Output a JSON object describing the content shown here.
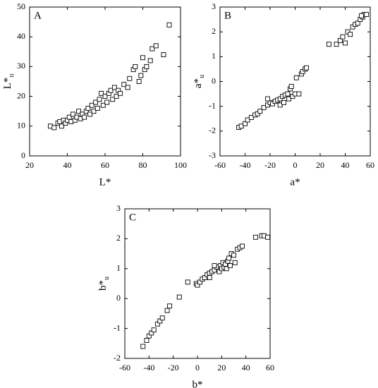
{
  "chart_data": [
    {
      "type": "scatter",
      "panel_label": "A",
      "xlabel": "L*",
      "ylabel": "L*",
      "ylabel_subscript": "u",
      "color": "#000000",
      "xlim": [
        20,
        100
      ],
      "xticks": [
        20,
        40,
        60,
        80,
        100
      ],
      "ylim": [
        0,
        50
      ],
      "yticks": [
        0,
        10,
        20,
        30,
        40,
        50
      ],
      "x": [
        31,
        33,
        35,
        36,
        37,
        38,
        39,
        40,
        41,
        42,
        43,
        44,
        45,
        46,
        47,
        48,
        49,
        50,
        51,
        52,
        53,
        54,
        55,
        56,
        57,
        58,
        59,
        60,
        61,
        62,
        63,
        64,
        65,
        66,
        67,
        68,
        70,
        72,
        73,
        75,
        76,
        78,
        79,
        80,
        81,
        82,
        84,
        85,
        87,
        91,
        94
      ],
      "y": [
        10,
        9.5,
        11,
        11.5,
        10,
        12,
        11,
        12,
        13,
        11.5,
        14,
        12,
        13,
        15,
        12.5,
        14,
        13,
        15,
        16,
        14,
        17,
        15,
        18,
        16,
        19,
        21,
        17,
        20,
        18,
        21,
        22,
        19,
        23,
        20,
        22,
        21,
        24,
        23,
        26,
        29,
        30,
        25,
        27,
        33,
        29,
        30,
        32,
        36,
        37,
        34,
        44
      ]
    },
    {
      "type": "scatter",
      "panel_label": "B",
      "xlabel": "a*",
      "ylabel": "a*",
      "ylabel_subscript": "u",
      "color": "#000000",
      "xlim": [
        -60,
        60
      ],
      "xticks": [
        -60,
        -40,
        -20,
        0,
        20,
        40,
        60
      ],
      "ylim": [
        -3,
        3
      ],
      "yticks": [
        -3,
        -2,
        -1,
        0,
        1,
        2,
        3
      ],
      "x": [
        -45,
        -43,
        -40,
        -38,
        -35,
        -32,
        -30,
        -28,
        -25,
        -22,
        -20,
        -18,
        -16,
        -14,
        -12,
        -10,
        -8,
        -6,
        -5,
        -4,
        -2,
        0,
        1,
        3,
        5,
        6,
        8,
        9,
        -22,
        -12,
        -9,
        -3,
        27,
        33,
        36,
        38,
        40,
        42,
        44,
        46,
        48,
        50,
        52,
        54,
        55,
        53,
        57
      ],
      "y": [
        -1.85,
        -1.8,
        -1.7,
        -1.55,
        -1.45,
        -1.35,
        -1.3,
        -1.2,
        -1.05,
        -0.95,
        -0.85,
        -0.9,
        -0.8,
        -0.75,
        -0.7,
        -0.6,
        -0.55,
        -0.5,
        -0.7,
        -0.3,
        -0.6,
        -0.5,
        0.15,
        -0.5,
        0.3,
        0.4,
        0.5,
        0.55,
        -0.7,
        -0.95,
        -0.85,
        -0.2,
        1.5,
        1.5,
        1.65,
        1.8,
        1.55,
        2.0,
        1.9,
        2.2,
        2.3,
        2.35,
        2.5,
        2.6,
        2.7,
        2.65,
        2.7
      ]
    },
    {
      "type": "scatter",
      "panel_label": "C",
      "xlabel": "b*",
      "ylabel": "b*",
      "ylabel_subscript": "u",
      "color": "#000000",
      "xlim": [
        -60,
        60
      ],
      "xticks": [
        -60,
        -40,
        -20,
        0,
        20,
        40,
        60
      ],
      "ylim": [
        -2,
        3
      ],
      "yticks": [
        -2,
        -1,
        0,
        1,
        2,
        3
      ],
      "x": [
        -45,
        -42,
        -40,
        -38,
        -36,
        -33,
        -31,
        -29,
        -25,
        -23,
        -15,
        -8,
        -1,
        0,
        2,
        4,
        6,
        8,
        10,
        12,
        14,
        16,
        18,
        19,
        20,
        21,
        22,
        23,
        24,
        25,
        26,
        27,
        28,
        30,
        31,
        33,
        35,
        37,
        48,
        53,
        55,
        58,
        14,
        10
      ],
      "y": [
        -1.6,
        -1.4,
        -1.25,
        -1.15,
        -1.05,
        -0.85,
        -0.75,
        -0.65,
        -0.4,
        -0.25,
        0.05,
        0.55,
        0.5,
        0.45,
        0.55,
        0.65,
        0.7,
        0.8,
        0.85,
        0.9,
        0.95,
        1.05,
        0.9,
        1.1,
        1.0,
        1.2,
        1.05,
        1.15,
        1.0,
        1.25,
        1.35,
        1.1,
        1.5,
        1.45,
        1.2,
        1.65,
        1.7,
        1.75,
        2.05,
        2.1,
        2.1,
        2.05,
        1.1,
        0.7
      ]
    }
  ]
}
